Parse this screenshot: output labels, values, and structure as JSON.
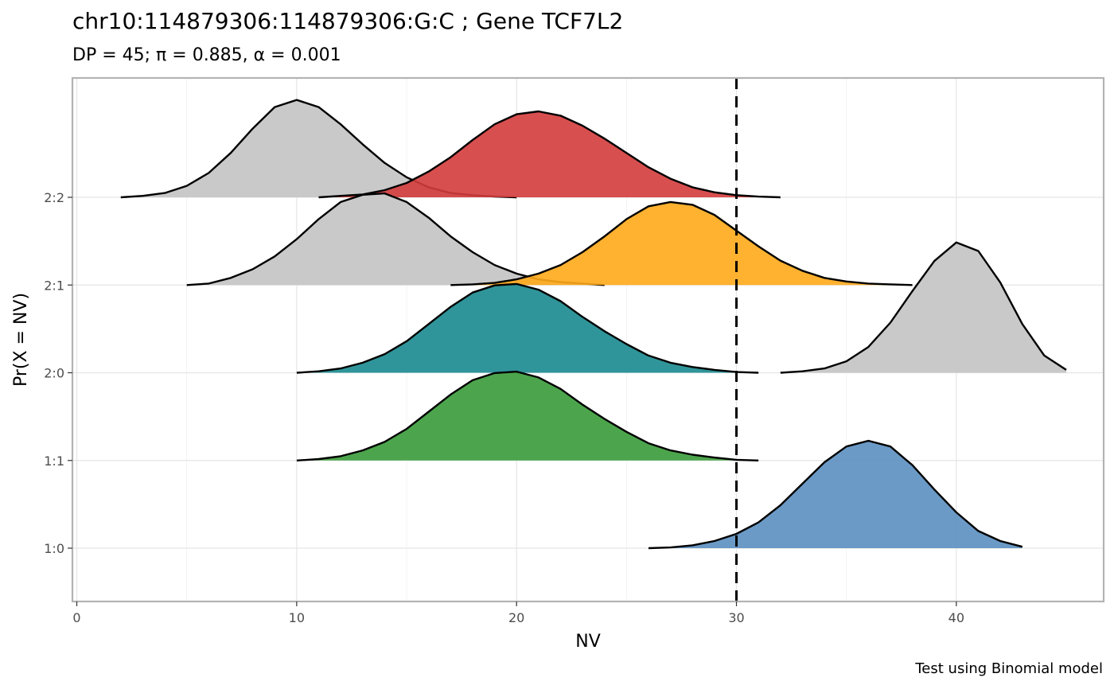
{
  "chart_data": {
    "type": "area",
    "title": "chr10:114879306:114879306:G:C ; Gene TCF7L2",
    "subtitle": "DP = 45; π = 0.885,  α = 0.001",
    "xlabel": "NV",
    "ylabel": "Pr(X = NV)",
    "caption": "Test using Binomial model",
    "xlim": [
      -0.2,
      46.7
    ],
    "x_ticks": [
      0,
      10,
      20,
      30,
      40
    ],
    "y_categories": [
      "1:0",
      "1:1",
      "2:0",
      "2:1",
      "2:2"
    ],
    "vline_x": 30,
    "grid": true,
    "legend": "none",
    "series": [
      {
        "category": "2:2",
        "fill": "#c9c9c9",
        "opacity": 1,
        "x": [
          2,
          3,
          4,
          5,
          6,
          7,
          8,
          9,
          10,
          11,
          12,
          13,
          14,
          15,
          16,
          17,
          18,
          19,
          20
        ],
        "y": [
          0,
          0.01,
          0.03,
          0.08,
          0.17,
          0.31,
          0.48,
          0.63,
          0.68,
          0.63,
          0.51,
          0.37,
          0.24,
          0.14,
          0.07,
          0.03,
          0.015,
          0.005,
          0
        ]
      },
      {
        "category": "2:2",
        "fill": "#d43c3c",
        "opacity": 0.9,
        "x": [
          11,
          12,
          13,
          14,
          15,
          16,
          17,
          18,
          19,
          20,
          21,
          22,
          23,
          24,
          25,
          26,
          27,
          28,
          29,
          30,
          31,
          32
        ],
        "y": [
          0,
          0.01,
          0.02,
          0.05,
          0.1,
          0.18,
          0.28,
          0.4,
          0.51,
          0.58,
          0.6,
          0.57,
          0.5,
          0.41,
          0.31,
          0.21,
          0.13,
          0.07,
          0.035,
          0.015,
          0.005,
          0
        ]
      },
      {
        "category": "2:1",
        "fill": "#c9c9c9",
        "opacity": 1,
        "x": [
          5,
          6,
          7,
          8,
          9,
          10,
          11,
          12,
          13,
          14,
          15,
          16,
          17,
          18,
          19,
          20,
          21,
          22,
          23,
          24
        ],
        "y": [
          0,
          0.01,
          0.05,
          0.11,
          0.2,
          0.32,
          0.46,
          0.58,
          0.63,
          0.64,
          0.58,
          0.47,
          0.34,
          0.23,
          0.14,
          0.08,
          0.04,
          0.02,
          0.01,
          0
        ]
      },
      {
        "category": "2:1",
        "fill": "#ffa81a",
        "opacity": 0.9,
        "x": [
          17,
          18,
          19,
          20,
          21,
          22,
          23,
          24,
          25,
          26,
          27,
          28,
          29,
          30,
          31,
          32,
          33,
          34,
          35,
          36,
          37,
          38
        ],
        "y": [
          0,
          0.005,
          0.015,
          0.04,
          0.08,
          0.14,
          0.23,
          0.34,
          0.46,
          0.55,
          0.58,
          0.56,
          0.49,
          0.38,
          0.27,
          0.17,
          0.1,
          0.05,
          0.025,
          0.01,
          0.005,
          0
        ]
      },
      {
        "category": "2:0",
        "fill": "#c9c9c9",
        "opacity": 1,
        "x": [
          32,
          33,
          34,
          35,
          36,
          37,
          38,
          39,
          40,
          41,
          42,
          43,
          44,
          45
        ],
        "y": [
          0,
          0.01,
          0.03,
          0.08,
          0.18,
          0.35,
          0.57,
          0.78,
          0.91,
          0.85,
          0.63,
          0.34,
          0.12,
          0.02
        ]
      },
      {
        "category": "2:0",
        "fill": "#1a8a8f",
        "opacity": 0.9,
        "x": [
          10,
          11,
          12,
          13,
          14,
          15,
          16,
          17,
          18,
          19,
          20,
          21,
          22,
          23,
          24,
          25,
          26,
          27,
          28,
          29,
          30,
          31
        ],
        "y": [
          0,
          0.01,
          0.03,
          0.07,
          0.13,
          0.22,
          0.34,
          0.46,
          0.56,
          0.61,
          0.62,
          0.58,
          0.5,
          0.39,
          0.29,
          0.2,
          0.12,
          0.07,
          0.04,
          0.02,
          0.005,
          0
        ]
      },
      {
        "category": "1:1",
        "fill": "#339933",
        "opacity": 0.88,
        "x": [
          10,
          11,
          12,
          13,
          14,
          15,
          16,
          17,
          18,
          19,
          20,
          21,
          22,
          23,
          24,
          25,
          26,
          27,
          28,
          29,
          30,
          31
        ],
        "y": [
          0,
          0.01,
          0.03,
          0.07,
          0.13,
          0.22,
          0.34,
          0.46,
          0.56,
          0.61,
          0.62,
          0.58,
          0.5,
          0.39,
          0.29,
          0.2,
          0.12,
          0.07,
          0.04,
          0.02,
          0.005,
          0
        ]
      },
      {
        "category": "1:0",
        "fill": "#5b8fc0",
        "opacity": 0.9,
        "x": [
          26,
          27,
          28,
          29,
          30,
          31,
          32,
          33,
          34,
          35,
          36,
          37,
          38,
          39,
          40,
          41,
          42,
          43
        ],
        "y": [
          0,
          0.005,
          0.02,
          0.05,
          0.1,
          0.18,
          0.3,
          0.45,
          0.6,
          0.71,
          0.75,
          0.71,
          0.58,
          0.41,
          0.25,
          0.12,
          0.05,
          0.01
        ]
      }
    ]
  }
}
